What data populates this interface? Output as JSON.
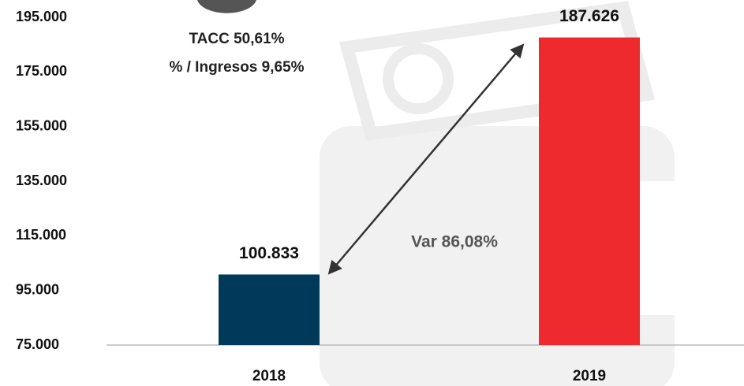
{
  "chart_data": {
    "type": "bar",
    "categories": [
      "2018",
      "2019"
    ],
    "values": [
      100833,
      187626
    ],
    "value_labels": [
      "100.833",
      "187.626"
    ],
    "colors": [
      "#003a5a",
      "#ee2a2f"
    ],
    "ylim": [
      75000,
      195000
    ],
    "yticks": [
      {
        "value": 75000,
        "label": "75.000"
      },
      {
        "value": 95000,
        "label": "95.000"
      },
      {
        "value": 115000,
        "label": "115.000"
      },
      {
        "value": 135000,
        "label": "135.000"
      },
      {
        "value": 155000,
        "label": "155.000"
      },
      {
        "value": 175000,
        "label": "175.000"
      },
      {
        "value": 195000,
        "label": "195.000"
      }
    ],
    "grid": false,
    "annotations": [
      "TACC 50,61%",
      "% / Ingresos 9,65%",
      "Var 86,08%"
    ]
  }
}
